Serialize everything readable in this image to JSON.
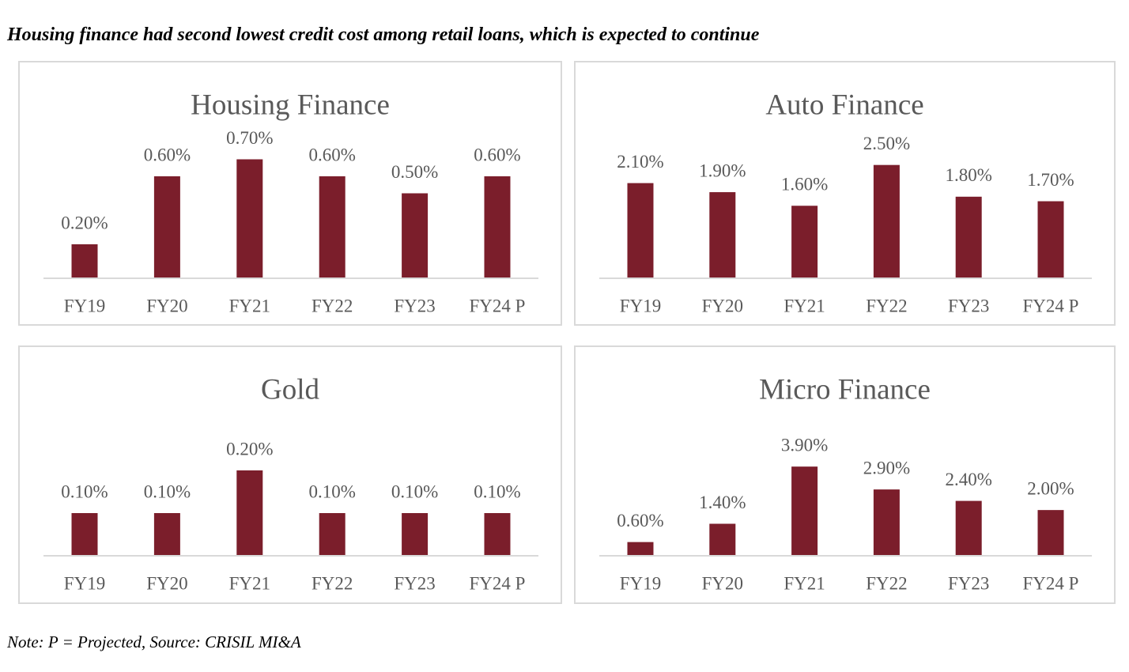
{
  "heading": "Housing finance had second lowest credit cost among retail loans, which is expected to continue",
  "note": "Note: P = Projected, Source: CRISIL MI&A",
  "colors": {
    "bar": "#7b1e2b",
    "axis": "#d9d9d9",
    "text": "#595959",
    "title": "#595959",
    "border": "#d9d9d9"
  },
  "chart_data": [
    {
      "type": "bar",
      "title": "Housing Finance",
      "categories": [
        "FY19",
        "FY20",
        "FY21",
        "FY22",
        "FY23",
        "FY24 P"
      ],
      "values": [
        0.2,
        0.6,
        0.7,
        0.6,
        0.5,
        0.6
      ],
      "labels": [
        "0.20%",
        "0.60%",
        "0.70%",
        "0.60%",
        "0.50%",
        "0.60%"
      ],
      "unit": "%",
      "ylim": [
        0,
        0.8
      ],
      "grid": false,
      "legend": "none"
    },
    {
      "type": "bar",
      "title": "Auto Finance",
      "categories": [
        "FY19",
        "FY20",
        "FY21",
        "FY22",
        "FY23",
        "FY24 P"
      ],
      "values": [
        2.1,
        1.9,
        1.6,
        2.5,
        1.8,
        1.7
      ],
      "labels": [
        "2.10%",
        "1.90%",
        "1.60%",
        "2.50%",
        "1.80%",
        "1.70%"
      ],
      "unit": "%",
      "ylim": [
        0,
        3.0
      ],
      "grid": false,
      "legend": "none"
    },
    {
      "type": "bar",
      "title": "Gold",
      "categories": [
        "FY19",
        "FY20",
        "FY21",
        "FY22",
        "FY23",
        "FY24 P"
      ],
      "values": [
        0.1,
        0.1,
        0.2,
        0.1,
        0.1,
        0.1
      ],
      "labels": [
        "0.10%",
        "0.10%",
        "0.20%",
        "0.10%",
        "0.10%",
        "0.10%"
      ],
      "unit": "%",
      "ylim": [
        0,
        0.3
      ],
      "grid": false,
      "legend": "none"
    },
    {
      "type": "bar",
      "title": "Micro Finance",
      "categories": [
        "FY19",
        "FY20",
        "FY21",
        "FY22",
        "FY23",
        "FY24 P"
      ],
      "values": [
        0.6,
        1.4,
        3.9,
        2.9,
        2.4,
        2.0
      ],
      "labels": [
        "0.60%",
        "1.40%",
        "3.90%",
        "2.90%",
        "2.40%",
        "2.00%"
      ],
      "unit": "%",
      "ylim": [
        0,
        5.6
      ],
      "grid": false,
      "legend": "none"
    }
  ]
}
